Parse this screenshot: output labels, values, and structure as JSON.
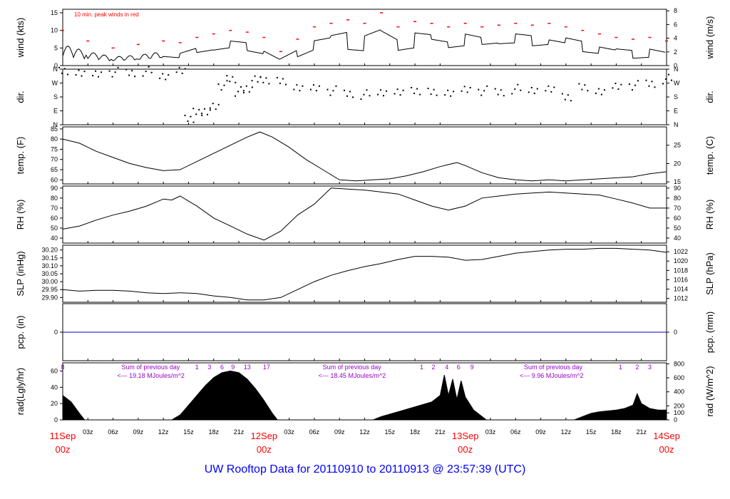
{
  "footer": {
    "title": "UW Rooftop Data for 20110910  to  20110913 @ 23:57:39  (UTC)"
  },
  "colors": {
    "peak": "#ff0000",
    "precip": "#0000cc",
    "annot": "#9900cc",
    "day": "#ff0000",
    "axis": "#000000"
  },
  "chart_data": {
    "type": "line",
    "x_range_hours": [
      0,
      72
    ],
    "x_ticks": [
      {
        "h": 3,
        "label": "03z"
      },
      {
        "h": 6,
        "label": "06z"
      },
      {
        "h": 9,
        "label": "09z"
      },
      {
        "h": 12,
        "label": "12z"
      },
      {
        "h": 15,
        "label": "15z"
      },
      {
        "h": 18,
        "label": "18z"
      },
      {
        "h": 21,
        "label": "21z"
      },
      {
        "h": 27,
        "label": "03z"
      },
      {
        "h": 30,
        "label": "06z"
      },
      {
        "h": 33,
        "label": "09z"
      },
      {
        "h": 36,
        "label": "12z"
      },
      {
        "h": 39,
        "label": "15z"
      },
      {
        "h": 42,
        "label": "18z"
      },
      {
        "h": 45,
        "label": "21z"
      },
      {
        "h": 51,
        "label": "03z"
      },
      {
        "h": 54,
        "label": "06z"
      },
      {
        "h": 57,
        "label": "09z"
      },
      {
        "h": 60,
        "label": "12z"
      },
      {
        "h": 63,
        "label": "15z"
      },
      {
        "h": 66,
        "label": "18z"
      },
      {
        "h": 69,
        "label": "21z"
      }
    ],
    "day_labels": [
      {
        "h": 0,
        "top": "11Sep",
        "bottom": "00z"
      },
      {
        "h": 24,
        "top": "12Sep",
        "bottom": "00z"
      },
      {
        "h": 48,
        "top": "13Sep",
        "bottom": "00z"
      },
      {
        "h": 72,
        "top": "14Sep",
        "bottom": "00z"
      }
    ],
    "panels": [
      {
        "id": "wind",
        "kind": "wind",
        "ylabel_left": "wind (kts)",
        "ylabel_right": "wind (m/s)",
        "ylim": [
          0,
          16
        ],
        "left_ticks": [
          {
            "v": 0,
            "label": "0"
          },
          {
            "v": 5,
            "label": "5"
          },
          {
            "v": 10,
            "label": "10"
          },
          {
            "v": 15,
            "label": "15"
          }
        ],
        "right_ticks": [
          {
            "v": 0,
            "label": "0"
          },
          {
            "v": 3.89,
            "label": "2"
          },
          {
            "v": 7.78,
            "label": "4"
          },
          {
            "v": 11.66,
            "label": "6"
          },
          {
            "v": 15.55,
            "label": "8"
          }
        ],
        "annotation": "10 min. peak winds in red",
        "x": [
          0,
          3,
          6,
          9,
          12,
          14,
          16,
          18,
          20,
          22,
          24,
          26,
          28,
          30,
          32,
          34,
          36,
          38,
          40,
          42,
          44,
          46,
          48,
          50,
          52,
          54,
          56,
          58,
          60,
          62,
          64,
          66,
          68,
          70,
          72
        ],
        "y": [
          6,
          4,
          2.5,
          3,
          4,
          3.5,
          5,
          6,
          7,
          6.5,
          5,
          2,
          4.5,
          8,
          9,
          10,
          9,
          11,
          8,
          9.5,
          9,
          8,
          9,
          8,
          8.5,
          9,
          8.5,
          9,
          8,
          7,
          6,
          5,
          4.5,
          5,
          4
        ],
        "peak_y": [
          10,
          7,
          5,
          6,
          7,
          6.5,
          8,
          9,
          10,
          9.5,
          8,
          4,
          7.5,
          11,
          12,
          13,
          12,
          15,
          11,
          12.5,
          12,
          11,
          12,
          11,
          11.5,
          12,
          11.5,
          12,
          11,
          10,
          9,
          8,
          7.5,
          8,
          7
        ]
      },
      {
        "id": "dir",
        "kind": "dir",
        "ylabel_left": "dir.",
        "ylabel_right": "dir.",
        "ylim": [
          0,
          360
        ],
        "left_ticks": [
          {
            "v": 0,
            "label": "N"
          },
          {
            "v": 90,
            "label": "E"
          },
          {
            "v": 180,
            "label": "S"
          },
          {
            "v": 270,
            "label": "W"
          },
          {
            "v": 360,
            "label": "N"
          }
        ],
        "right_ticks": [
          {
            "v": 0,
            "label": "N"
          },
          {
            "v": 90,
            "label": "E"
          },
          {
            "v": 180,
            "label": "S"
          },
          {
            "v": 270,
            "label": "W"
          },
          {
            "v": 360,
            "label": "N"
          }
        ],
        "x": [
          0,
          2,
          4,
          6,
          8,
          10,
          12,
          14,
          15,
          16,
          17,
          18,
          19,
          20,
          21,
          22,
          23,
          24,
          26,
          28,
          30,
          32,
          34,
          36,
          38,
          40,
          42,
          44,
          46,
          48,
          50,
          52,
          54,
          56,
          58,
          60,
          62,
          64,
          66,
          68,
          70,
          72
        ],
        "y": [
          345,
          350,
          330,
          345,
          340,
          350,
          320,
          345,
          50,
          80,
          100,
          120,
          260,
          300,
          220,
          240,
          290,
          300,
          280,
          255,
          240,
          225,
          205,
          200,
          215,
          205,
          230,
          210,
          220,
          230,
          225,
          215,
          235,
          230,
          225,
          190,
          240,
          230,
          250,
          260,
          270,
          300
        ]
      },
      {
        "id": "temp",
        "kind": "line",
        "ylabel_left": "temp. (F)",
        "ylabel_right": "temp. (C)",
        "ylim": [
          58,
          86
        ],
        "left_ticks": [
          {
            "v": 60,
            "label": "60"
          },
          {
            "v": 65,
            "label": "65"
          },
          {
            "v": 70,
            "label": "70"
          },
          {
            "v": 75,
            "label": "75"
          },
          {
            "v": 80,
            "label": "80"
          },
          {
            "v": 85,
            "label": "85"
          }
        ],
        "right_ticks": [
          {
            "v": 59,
            "label": "15"
          },
          {
            "v": 68,
            "label": "20"
          },
          {
            "v": 77,
            "label": "25"
          }
        ],
        "x": [
          0,
          2,
          4,
          6,
          8,
          10,
          12,
          14,
          16,
          18,
          20,
          22,
          23.5,
          25,
          27,
          29,
          31,
          33,
          35,
          37,
          39,
          41,
          43,
          45,
          47,
          48,
          50,
          52,
          54,
          56,
          58,
          60,
          62,
          64,
          66,
          68,
          70,
          72
        ],
        "y": [
          80,
          78,
          74,
          71,
          68,
          66,
          64.5,
          65,
          69,
          73,
          77,
          81,
          83.5,
          81,
          76,
          70,
          65,
          60,
          59.5,
          60,
          60.5,
          62,
          64,
          66.5,
          68.5,
          67,
          63.5,
          61,
          60,
          59.5,
          60,
          59.5,
          60,
          60.5,
          61,
          61.5,
          63,
          64
        ]
      },
      {
        "id": "rh",
        "kind": "line",
        "ylabel_left": "RH (%)",
        "ylabel_right": "RH (%)",
        "ylim": [
          35,
          92
        ],
        "left_ticks": [
          {
            "v": 40,
            "label": "40"
          },
          {
            "v": 50,
            "label": "50"
          },
          {
            "v": 60,
            "label": "60"
          },
          {
            "v": 70,
            "label": "70"
          },
          {
            "v": 80,
            "label": "80"
          },
          {
            "v": 90,
            "label": "90"
          }
        ],
        "right_ticks": [
          {
            "v": 40,
            "label": "40"
          },
          {
            "v": 50,
            "label": "50"
          },
          {
            "v": 60,
            "label": "60"
          },
          {
            "v": 70,
            "label": "70"
          },
          {
            "v": 80,
            "label": "80"
          },
          {
            "v": 90,
            "label": "90"
          }
        ],
        "x": [
          0,
          2,
          4,
          6,
          8,
          10,
          12,
          13,
          14,
          16,
          18,
          20,
          22,
          24,
          26,
          28,
          30,
          32,
          34,
          36,
          38,
          40,
          42,
          44,
          46,
          48,
          50,
          52,
          54,
          56,
          58,
          60,
          62,
          64,
          66,
          68,
          70,
          72
        ],
        "y": [
          49,
          52,
          58,
          63,
          67,
          72,
          79,
          78,
          82,
          72,
          60,
          52,
          44,
          38,
          47,
          63,
          74,
          90,
          89,
          88,
          86,
          84,
          78,
          72,
          68,
          72,
          80,
          82,
          84,
          85,
          86,
          85,
          84,
          83,
          79,
          75,
          70,
          70
        ]
      },
      {
        "id": "slp",
        "kind": "line",
        "ylabel_left": "SLP (inHg)",
        "ylabel_right": "SLP (hPa)",
        "ylim": [
          29.87,
          30.23
        ],
        "left_ticks": [
          {
            "v": 29.9,
            "label": "29.90"
          },
          {
            "v": 29.95,
            "label": "29.95"
          },
          {
            "v": 30.0,
            "label": "30.00"
          },
          {
            "v": 30.05,
            "label": "30.05"
          },
          {
            "v": 30.1,
            "label": "30.10"
          },
          {
            "v": 30.15,
            "label": "30.15"
          },
          {
            "v": 30.2,
            "label": "30.20"
          }
        ],
        "right_ticks": [
          {
            "v": 29.894,
            "label": "1012"
          },
          {
            "v": 29.953,
            "label": "1014"
          },
          {
            "v": 30.012,
            "label": "1016"
          },
          {
            "v": 30.071,
            "label": "1018"
          },
          {
            "v": 30.13,
            "label": "1020"
          },
          {
            "v": 30.189,
            "label": "1022"
          }
        ],
        "x": [
          0,
          2,
          4,
          6,
          8,
          10,
          12,
          14,
          16,
          18,
          20,
          22,
          24,
          26,
          28,
          30,
          32,
          34,
          36,
          38,
          40,
          42,
          44,
          46,
          48,
          50,
          52,
          54,
          56,
          58,
          60,
          62,
          64,
          66,
          68,
          70,
          72
        ],
        "y": [
          29.95,
          29.94,
          29.945,
          29.945,
          29.94,
          29.93,
          29.925,
          29.93,
          29.925,
          29.91,
          29.9,
          29.885,
          29.885,
          29.9,
          29.95,
          30.0,
          30.04,
          30.07,
          30.095,
          30.115,
          30.14,
          30.16,
          30.16,
          30.155,
          30.135,
          30.14,
          30.16,
          30.18,
          30.19,
          30.2,
          30.205,
          30.205,
          30.21,
          30.21,
          30.205,
          30.2,
          30.185
        ]
      },
      {
        "id": "pcp",
        "kind": "flat",
        "ylabel_left": "pcp. (in)",
        "ylabel_right": "pcp. (mm)",
        "ylim": [
          -1,
          1
        ],
        "left_ticks": [
          {
            "v": 0,
            "label": "0"
          }
        ],
        "right_ticks": [
          {
            "v": 0,
            "label": "0"
          }
        ],
        "x": [
          0,
          72
        ],
        "y": [
          0,
          0
        ]
      },
      {
        "id": "rad",
        "kind": "area",
        "ylabel_left": "rad(Lgly/hr)",
        "ylabel_right": "rad (W/m^2)",
        "ylim": [
          0,
          70
        ],
        "left_ticks": [
          {
            "v": 0,
            "label": "0"
          },
          {
            "v": 20,
            "label": "20"
          },
          {
            "v": 40,
            "label": "40"
          },
          {
            "v": 60,
            "label": "60"
          }
        ],
        "right_ticks": [
          {
            "v": 0,
            "label": "0"
          },
          {
            "v": 8.6,
            "label": "100"
          },
          {
            "v": 17.2,
            "label": "200"
          },
          {
            "v": 34.4,
            "label": "400"
          },
          {
            "v": 51.6,
            "label": "600"
          },
          {
            "v": 68.8,
            "label": "800"
          }
        ],
        "x": [
          0,
          1,
          2,
          2.6,
          13,
          14,
          15,
          16,
          17,
          18,
          19,
          20,
          21,
          22,
          23,
          24,
          25,
          25.6,
          37,
          38,
          40,
          42,
          44,
          45,
          45.5,
          46,
          46.5,
          47,
          47.5,
          48,
          49,
          50,
          50.5,
          61,
          62,
          63,
          64,
          66,
          67,
          68,
          68.5,
          69,
          70,
          71,
          72
        ],
        "y": [
          30,
          22,
          8,
          0,
          0,
          6,
          18,
          30,
          42,
          52,
          58,
          60,
          58,
          50,
          38,
          24,
          8,
          0,
          0,
          4,
          10,
          16,
          22,
          30,
          55,
          30,
          50,
          25,
          48,
          28,
          12,
          4,
          0,
          0,
          4,
          8,
          10,
          12,
          14,
          18,
          32,
          20,
          14,
          12,
          12
        ],
        "sunrise_marks": [
          {
            "h": 0,
            "label": "8"
          },
          {
            "h": 16,
            "label": "1"
          },
          {
            "h": 17.5,
            "label": "3"
          },
          {
            "h": 19,
            "label": "6"
          },
          {
            "h": 20.3,
            "label": "9"
          },
          {
            "h": 22,
            "label": "13"
          },
          {
            "h": 24.3,
            "label": "17"
          },
          {
            "h": 42.8,
            "label": "1"
          },
          {
            "h": 44.2,
            "label": "2"
          },
          {
            "h": 45.8,
            "label": "4"
          },
          {
            "h": 47.2,
            "label": "6"
          },
          {
            "h": 48.8,
            "label": "9"
          },
          {
            "h": 66.5,
            "label": "1"
          },
          {
            "h": 68.5,
            "label": "2"
          },
          {
            "h": 70,
            "label": "3"
          }
        ],
        "daily_sums": [
          {
            "h": 7,
            "line1": "Sum of previous day",
            "line2": "<--- 19.18 MJoules/m^2"
          },
          {
            "h": 31,
            "line1": "Sum of previous day",
            "line2": "<--- 18.45 MJoules/m^2"
          },
          {
            "h": 55,
            "line1": "Sum of previous day",
            "line2": "<--- 9.96 MJoules/m^2"
          }
        ]
      }
    ]
  }
}
